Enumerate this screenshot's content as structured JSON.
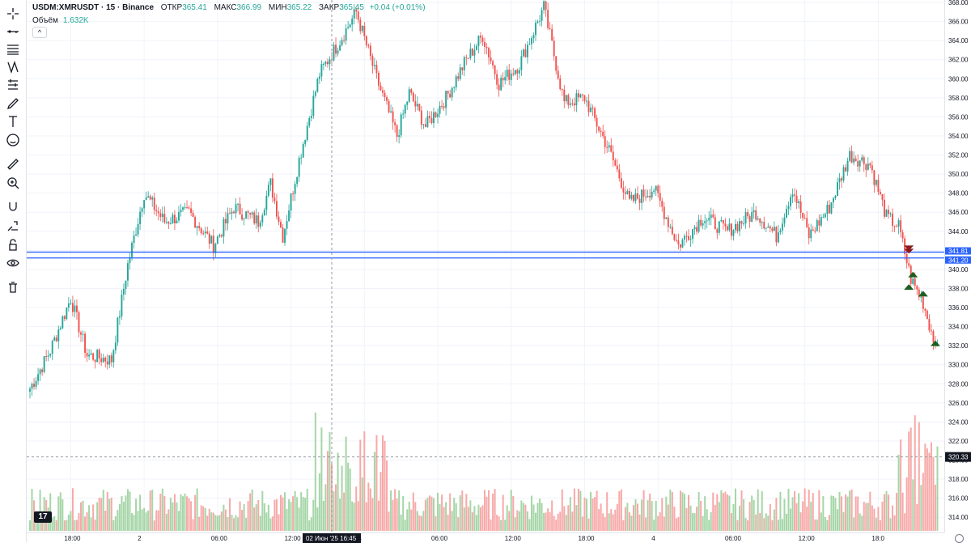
{
  "legend": {
    "symbol": "USDM:XMRUSDT · 15 · Binance",
    "open_label": "ОТКР",
    "open": "365.41",
    "high_label": "МАКС",
    "high": "366.99",
    "low_label": "МИН",
    "low": "365.22",
    "close_label": "ЗАКР",
    "close": "365.45",
    "change": "+0.04 (+0.01%)",
    "volume_label": "Объём",
    "volume": "1.632K",
    "collapse_glyph": "^"
  },
  "logo_text": "17",
  "colors": {
    "up": "#26a69a",
    "down": "#ef5350",
    "up_vol": "#a5d6a7",
    "down_vol": "#f7a9a8",
    "hline": "#2962ff",
    "grid": "#f0f3fa"
  },
  "toolbar": [
    "crosshair-icon",
    "trendline-icon",
    "fib-icon",
    "pattern-icon",
    "projection-icon",
    "brush-icon",
    "text-icon",
    "emoji-icon",
    "ruler-icon",
    "zoom-icon",
    "magnet-icon",
    "lock-drawing-icon",
    "lock-icon",
    "eye-icon",
    "trash-icon"
  ],
  "price_axis": {
    "ticks": [
      "368.00",
      "366.00",
      "364.00",
      "362.00",
      "360.00",
      "358.00",
      "356.00",
      "354.00",
      "352.00",
      "350.00",
      "348.00",
      "346.00",
      "344.00",
      "342.00",
      "340.00",
      "338.00",
      "336.00",
      "334.00",
      "332.00",
      "330.00",
      "328.00",
      "326.00",
      "324.00",
      "322.00",
      "320.00",
      "318.00",
      "316.00",
      "314.00"
    ],
    "hline_labels": [
      "341.81",
      "341.20"
    ],
    "crosshair_label": "320.33"
  },
  "time_axis": {
    "labels": [
      "18:00",
      "2",
      "06:00",
      "12:00",
      "3",
      "06:00",
      "12:00",
      "18:00",
      "4",
      "06:00",
      "12:00",
      "18:0"
    ],
    "crosshair_label": "02 Июн '25   16:45"
  },
  "chart_data": {
    "type": "candlestick",
    "title": "USDM:XMRUSDT · 15 · Binance",
    "interval": "15m",
    "ylim": [
      313,
      368
    ],
    "horizontal_lines": [
      341.81,
      341.2
    ],
    "crosshair": {
      "time": "02 Июн '25 16:45",
      "price": 320.33
    },
    "markers": [
      {
        "type": "sell",
        "time": "3 Jun 12:00",
        "price": 342.0
      },
      {
        "type": "buy",
        "time": "3 Jun 12:15",
        "price": 339.5
      },
      {
        "type": "buy",
        "time": "3 Jun 12:00",
        "price": 338.2
      },
      {
        "type": "buy",
        "time": "3 Jun 12:45",
        "price": 337.5
      },
      {
        "type": "buy",
        "time": "3 Jun 15:00",
        "price": 332.3
      }
    ],
    "anchors": [
      {
        "i": 0,
        "p": 327.5
      },
      {
        "i": 10,
        "p": 331.5
      },
      {
        "i": 20,
        "p": 337.0
      },
      {
        "i": 28,
        "p": 331.0
      },
      {
        "i": 40,
        "p": 330.5
      },
      {
        "i": 48,
        "p": 340.5
      },
      {
        "i": 56,
        "p": 348.0
      },
      {
        "i": 66,
        "p": 345.0
      },
      {
        "i": 78,
        "p": 346.0
      },
      {
        "i": 90,
        "p": 342.5
      },
      {
        "i": 100,
        "p": 346.5
      },
      {
        "i": 112,
        "p": 345.0
      },
      {
        "i": 118,
        "p": 349.0
      },
      {
        "i": 124,
        "p": 343.5
      },
      {
        "i": 132,
        "p": 351.5
      },
      {
        "i": 142,
        "p": 360.5
      },
      {
        "i": 152,
        "p": 364.0
      },
      {
        "i": 160,
        "p": 367.0
      },
      {
        "i": 170,
        "p": 360.0
      },
      {
        "i": 180,
        "p": 354.0
      },
      {
        "i": 186,
        "p": 358.5
      },
      {
        "i": 194,
        "p": 355.0
      },
      {
        "i": 204,
        "p": 358.0
      },
      {
        "i": 214,
        "p": 362.0
      },
      {
        "i": 222,
        "p": 364.5
      },
      {
        "i": 230,
        "p": 359.5
      },
      {
        "i": 240,
        "p": 361.5
      },
      {
        "i": 252,
        "p": 367.5
      },
      {
        "i": 262,
        "p": 357.5
      },
      {
        "i": 272,
        "p": 358.0
      },
      {
        "i": 284,
        "p": 352.5
      },
      {
        "i": 294,
        "p": 347.0
      },
      {
        "i": 306,
        "p": 348.5
      },
      {
        "i": 318,
        "p": 342.5
      },
      {
        "i": 330,
        "p": 345.5
      },
      {
        "i": 342,
        "p": 344.0
      },
      {
        "i": 356,
        "p": 346.0
      },
      {
        "i": 366,
        "p": 343.5
      },
      {
        "i": 374,
        "p": 348.5
      },
      {
        "i": 382,
        "p": 343.5
      },
      {
        "i": 392,
        "p": 346.5
      },
      {
        "i": 402,
        "p": 352.0
      },
      {
        "i": 412,
        "p": 351.0
      },
      {
        "i": 420,
        "p": 345.5
      },
      {
        "i": 426,
        "p": 344.5
      },
      {
        "i": 432,
        "p": 339.0
      },
      {
        "i": 438,
        "p": 336.5
      },
      {
        "i": 444,
        "p": 332.0
      }
    ],
    "candle_count": 446,
    "volume_ylim": [
      0,
      1
    ]
  }
}
